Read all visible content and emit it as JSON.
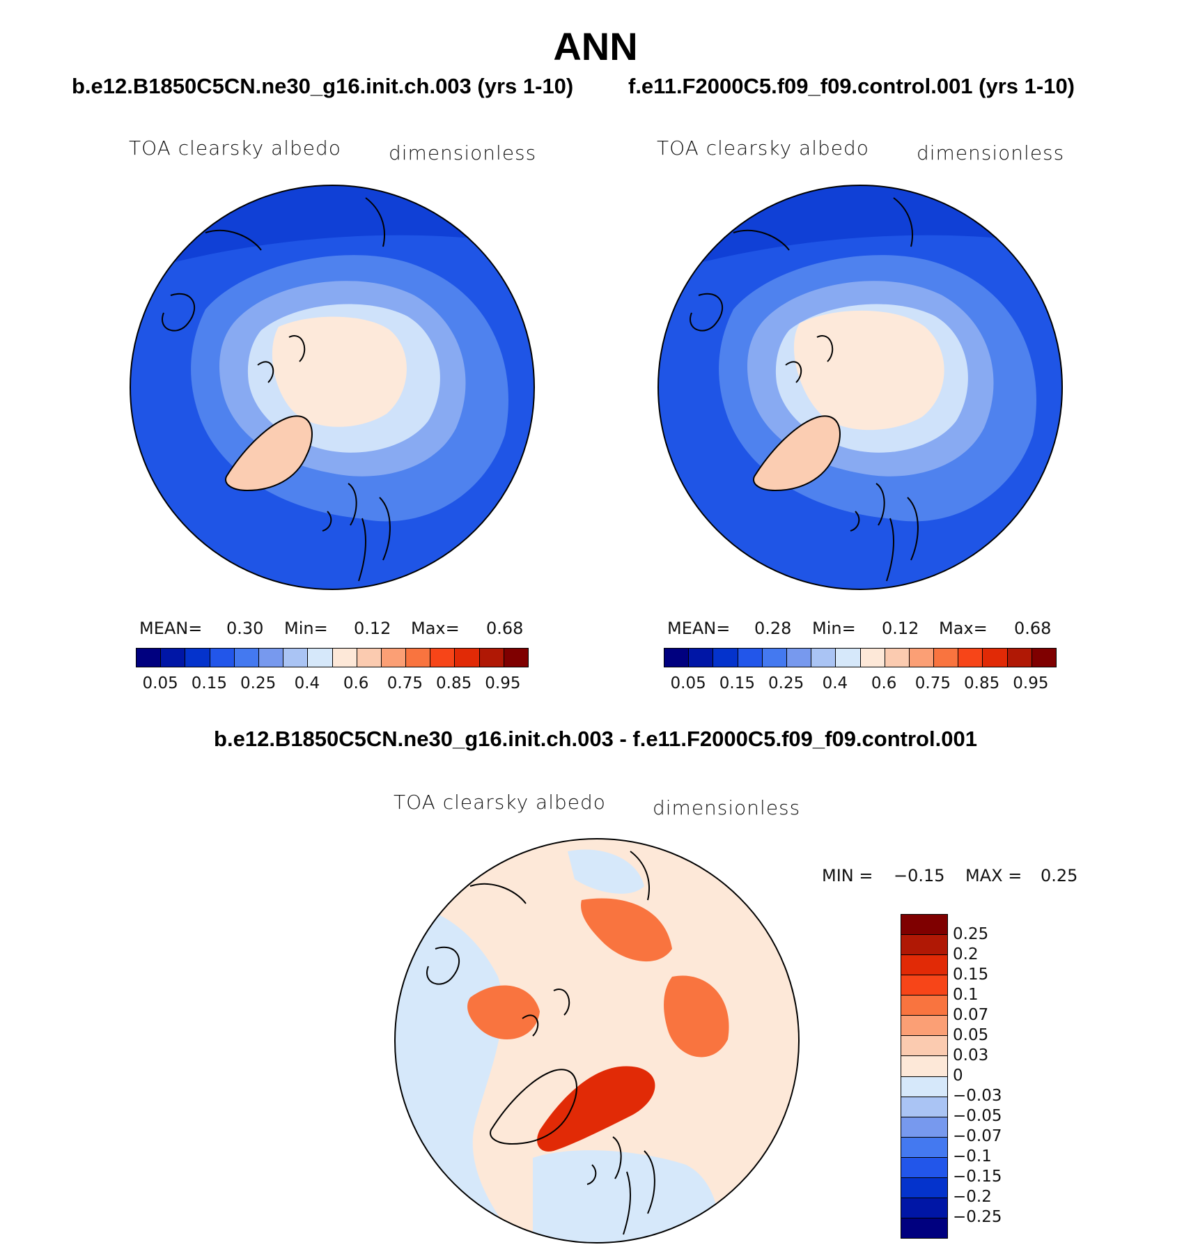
{
  "title": "ANN",
  "panels": [
    {
      "case": "b.e12.B1850C5CN.ne30_g16.init.ch.003 (yrs 1-10)",
      "variable": "TOA clearsky albedo",
      "units": "dimensionless",
      "mean_label": "MEAN=",
      "mean": "0.30",
      "min_label": "Min=",
      "min": "0.12",
      "max_label": "Max=",
      "max": "0.68"
    },
    {
      "case": "f.e11.F2000C5.f09_f09.control.001 (yrs 1-10)",
      "variable": "TOA clearsky albedo",
      "units": "dimensionless",
      "mean_label": "MEAN=",
      "mean": "0.28",
      "min_label": "Min=",
      "min": "0.12",
      "max_label": "Max=",
      "max": "0.68"
    }
  ],
  "colorbar_abs": {
    "colors": [
      "#00007f",
      "#0016a6",
      "#0433cc",
      "#2256ea",
      "#4479f0",
      "#7799ee",
      "#aac4f4",
      "#d6e8fa",
      "#fde8d8",
      "#fbcbb0",
      "#fb9f75",
      "#f9743f",
      "#f74518",
      "#e12a06",
      "#b01805",
      "#7f0000"
    ],
    "labels": [
      "0.05",
      "0.15",
      "0.25",
      "0.4",
      "0.6",
      "0.75",
      "0.85",
      "0.95"
    ]
  },
  "difference": {
    "title": "b.e12.B1850C5CN.ne30_g16.init.ch.003 - f.e11.F2000C5.f09_f09.control.001",
    "variable": "TOA clearsky albedo",
    "units": "dimensionless",
    "min_label": "MIN =",
    "min": "−0.15",
    "max_label": "MAX =",
    "max": "0.25",
    "colorbar": {
      "colors": [
        "#7f0000",
        "#b01805",
        "#e12a06",
        "#f74518",
        "#f9743f",
        "#fb9f75",
        "#fbcbb0",
        "#fde8d8",
        "#d6e8fa",
        "#aac4f4",
        "#7799ee",
        "#4479f0",
        "#2256ea",
        "#0433cc",
        "#0016a6",
        "#00007f"
      ],
      "labels": [
        "0.25",
        "0.2",
        "0.15",
        "0.1",
        "0.07",
        "0.05",
        "0.03",
        "0",
        "−0.03",
        "−0.05",
        "−0.07",
        "−0.1",
        "−0.15",
        "−0.2",
        "−0.25"
      ]
    }
  },
  "map_palette": {
    "ocean_abs": "#1f55e6",
    "ocean_abs_dark": "#1040d6",
    "ring_mid": "#4f82ee",
    "ring_light": "#88aaf2",
    "ring_pale": "#cfe2fa",
    "ice": "#fde9da",
    "greenland": "#fbcdb2",
    "diff_base": "#fde8d8",
    "diff_blue": "#d6e8fa",
    "diff_red": "#f9743f",
    "diff_deep": "#e12a06",
    "coast": "#000000"
  }
}
